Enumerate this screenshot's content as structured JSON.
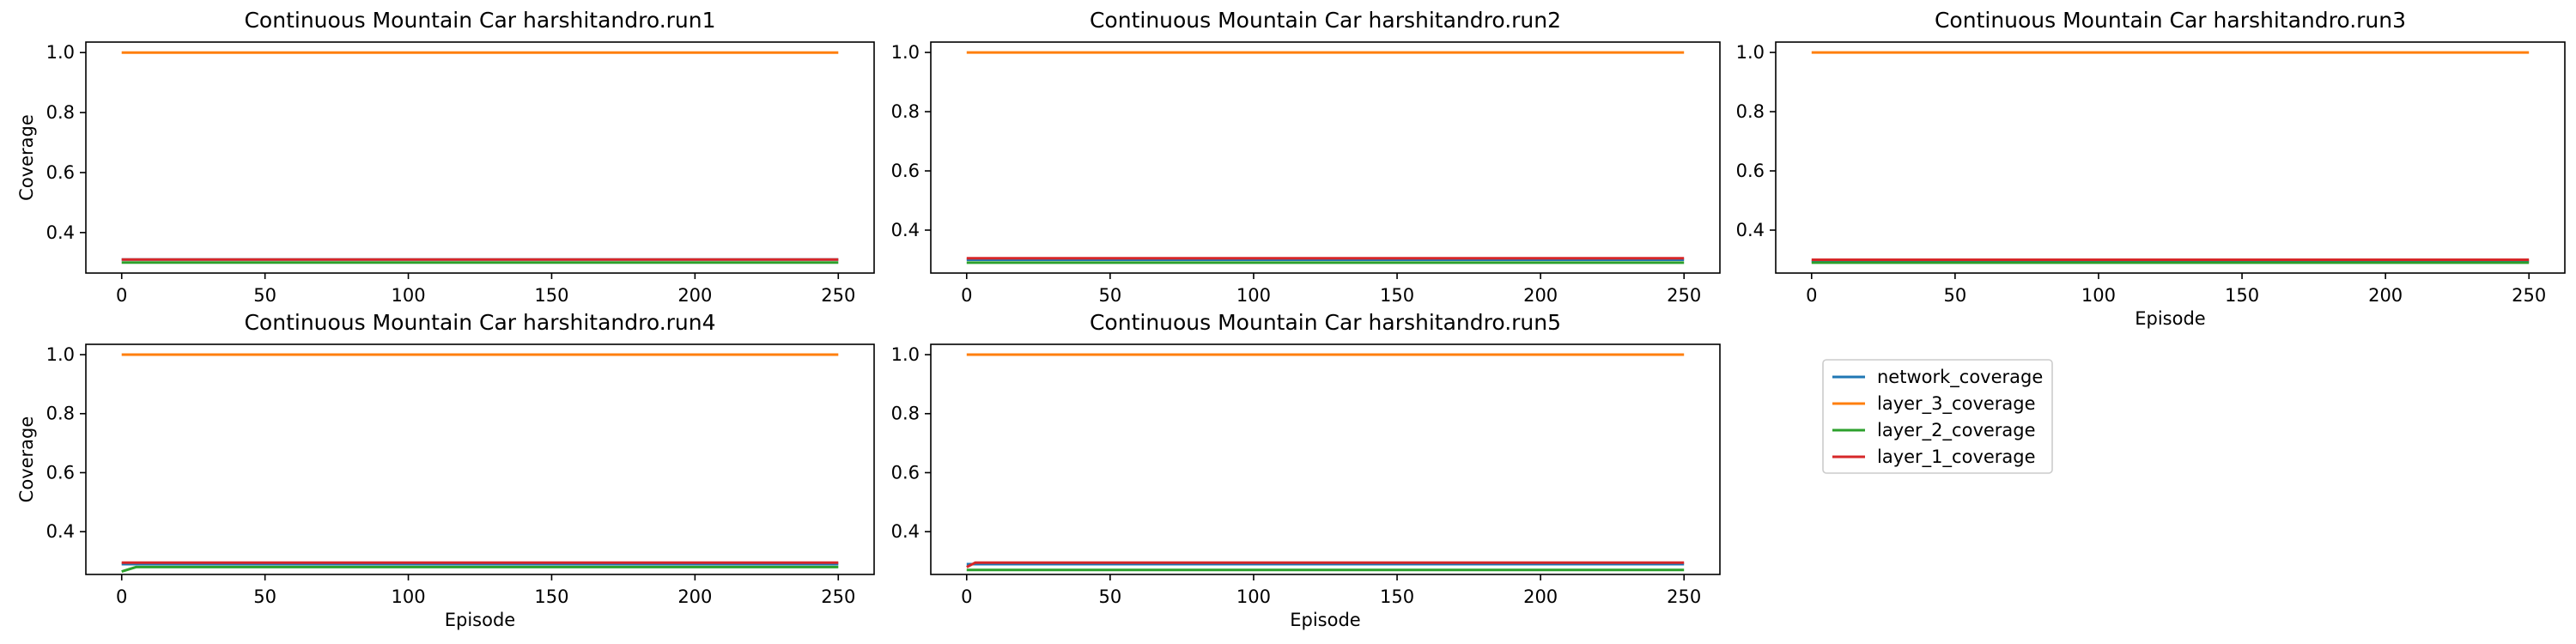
{
  "figure": {
    "legend_placement": "separate panel, right of bottom row",
    "legend": [
      {
        "name": "network_coverage",
        "color": "#1f77b4"
      },
      {
        "name": "layer_3_coverage",
        "color": "#ff7f0e"
      },
      {
        "name": "layer_2_coverage",
        "color": "#2ca02c"
      },
      {
        "name": "layer_1_coverage",
        "color": "#d62728"
      }
    ]
  },
  "chart_data": [
    {
      "type": "line",
      "title": "Continuous Mountain Car harshitandro.run1",
      "xlabel": "",
      "ylabel": "Coverage",
      "xlim": [
        -12.5,
        262.5
      ],
      "ylim": [
        0.265,
        1.035
      ],
      "xticks": [
        0,
        50,
        100,
        150,
        200,
        250
      ],
      "yticks": [
        0.4,
        0.6,
        0.8,
        1.0
      ],
      "grid": false,
      "series": [
        {
          "name": "network_coverage",
          "color": "#1f77b4",
          "x": [
            0,
            250
          ],
          "y": [
            0.31,
            0.31
          ]
        },
        {
          "name": "layer_3_coverage",
          "color": "#ff7f0e",
          "x": [
            0,
            250
          ],
          "y": [
            1.0,
            1.0
          ]
        },
        {
          "name": "layer_2_coverage",
          "color": "#2ca02c",
          "x": [
            0,
            250
          ],
          "y": [
            0.3,
            0.3
          ]
        },
        {
          "name": "layer_1_coverage",
          "color": "#d62728",
          "x": [
            0,
            250
          ],
          "y": [
            0.31,
            0.31
          ]
        }
      ]
    },
    {
      "type": "line",
      "title": "Continuous Mountain Car harshitandro.run2",
      "xlabel": "",
      "ylabel": "",
      "xlim": [
        -12.5,
        262.5
      ],
      "ylim": [
        0.255,
        1.035
      ],
      "xticks": [
        0,
        50,
        100,
        150,
        200,
        250
      ],
      "yticks": [
        0.4,
        0.6,
        0.8,
        1.0
      ],
      "grid": false,
      "series": [
        {
          "name": "network_coverage",
          "color": "#1f77b4",
          "x": [
            0,
            250
          ],
          "y": [
            0.3,
            0.3
          ]
        },
        {
          "name": "layer_3_coverage",
          "color": "#ff7f0e",
          "x": [
            0,
            250
          ],
          "y": [
            1.0,
            1.0
          ]
        },
        {
          "name": "layer_2_coverage",
          "color": "#2ca02c",
          "x": [
            0,
            250
          ],
          "y": [
            0.29,
            0.29
          ]
        },
        {
          "name": "layer_1_coverage",
          "color": "#d62728",
          "x": [
            0,
            250
          ],
          "y": [
            0.305,
            0.305
          ]
        }
      ]
    },
    {
      "type": "line",
      "title": "Continuous Mountain Car harshitandro.run3",
      "xlabel": "Episode",
      "ylabel": "",
      "xlim": [
        -12.5,
        262.5
      ],
      "ylim": [
        0.255,
        1.035
      ],
      "xticks": [
        0,
        50,
        100,
        150,
        200,
        250
      ],
      "yticks": [
        0.4,
        0.6,
        0.8,
        1.0
      ],
      "grid": false,
      "series": [
        {
          "name": "network_coverage",
          "color": "#1f77b4",
          "x": [
            0,
            250
          ],
          "y": [
            0.295,
            0.295
          ]
        },
        {
          "name": "layer_3_coverage",
          "color": "#ff7f0e",
          "x": [
            0,
            250
          ],
          "y": [
            1.0,
            1.0
          ]
        },
        {
          "name": "layer_2_coverage",
          "color": "#2ca02c",
          "x": [
            0,
            250
          ],
          "y": [
            0.29,
            0.29
          ]
        },
        {
          "name": "layer_1_coverage",
          "color": "#d62728",
          "x": [
            0,
            250
          ],
          "y": [
            0.3,
            0.3
          ]
        }
      ]
    },
    {
      "type": "line",
      "title": "Continuous Mountain Car harshitandro.run4",
      "xlabel": "Episode",
      "ylabel": "Coverage",
      "xlim": [
        -12.5,
        262.5
      ],
      "ylim": [
        0.255,
        1.035
      ],
      "xticks": [
        0,
        50,
        100,
        150,
        200,
        250
      ],
      "yticks": [
        0.4,
        0.6,
        0.8,
        1.0
      ],
      "grid": false,
      "series": [
        {
          "name": "network_coverage",
          "color": "#1f77b4",
          "x": [
            0,
            250
          ],
          "y": [
            0.29,
            0.29
          ]
        },
        {
          "name": "layer_3_coverage",
          "color": "#ff7f0e",
          "x": [
            0,
            250
          ],
          "y": [
            1.0,
            1.0
          ]
        },
        {
          "name": "layer_2_coverage",
          "color": "#2ca02c",
          "x": [
            0,
            5,
            250
          ],
          "y": [
            0.265,
            0.28,
            0.28
          ]
        },
        {
          "name": "layer_1_coverage",
          "color": "#d62728",
          "x": [
            0,
            250
          ],
          "y": [
            0.295,
            0.295
          ]
        }
      ]
    },
    {
      "type": "line",
      "title": "Continuous Mountain Car harshitandro.run5",
      "xlabel": "Episode",
      "ylabel": "",
      "xlim": [
        -12.5,
        262.5
      ],
      "ylim": [
        0.255,
        1.035
      ],
      "xticks": [
        0,
        50,
        100,
        150,
        200,
        250
      ],
      "yticks": [
        0.4,
        0.6,
        0.8,
        1.0
      ],
      "grid": false,
      "series": [
        {
          "name": "network_coverage",
          "color": "#1f77b4",
          "x": [
            0,
            250
          ],
          "y": [
            0.29,
            0.29
          ]
        },
        {
          "name": "layer_3_coverage",
          "color": "#ff7f0e",
          "x": [
            0,
            250
          ],
          "y": [
            1.0,
            1.0
          ]
        },
        {
          "name": "layer_2_coverage",
          "color": "#2ca02c",
          "x": [
            0,
            250
          ],
          "y": [
            0.27,
            0.27
          ]
        },
        {
          "name": "layer_1_coverage",
          "color": "#d62728",
          "x": [
            0,
            3,
            250
          ],
          "y": [
            0.28,
            0.295,
            0.295
          ]
        }
      ]
    }
  ]
}
